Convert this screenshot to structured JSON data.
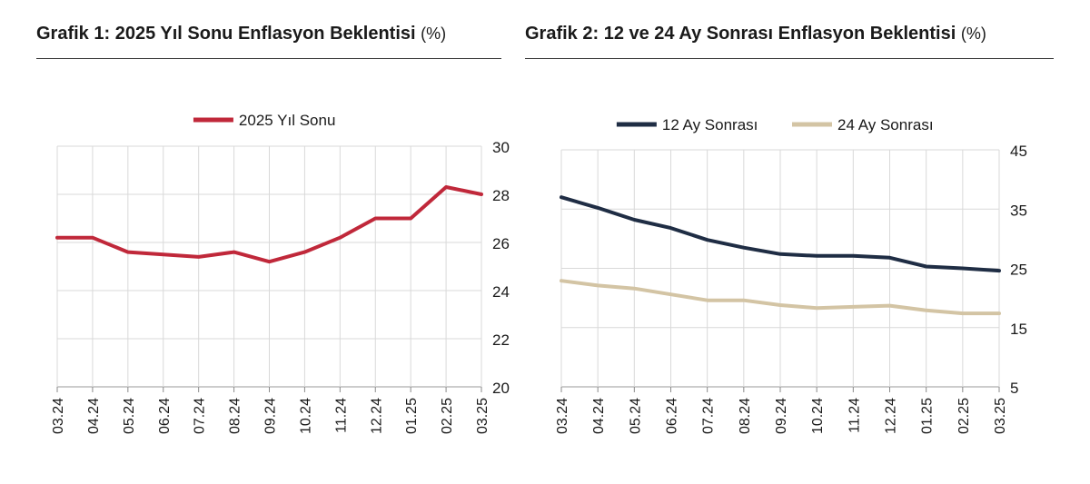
{
  "chart_data": [
    {
      "type": "line",
      "title": "Grafik 1: 2025 Yıl Sonu Enflasyon Beklentisi",
      "unit": "(%)",
      "categories": [
        "03.24",
        "04.24",
        "05.24",
        "06.24",
        "07.24",
        "08.24",
        "09.24",
        "10.24",
        "11.24",
        "12.24",
        "01.25",
        "02.25",
        "03.25"
      ],
      "series": [
        {
          "name": "2025 Yıl Sonu",
          "color": "#c0283a",
          "values": [
            26.2,
            26.2,
            25.6,
            25.5,
            25.4,
            25.6,
            25.2,
            25.6,
            26.2,
            27.0,
            27.0,
            28.3,
            28.0
          ]
        }
      ],
      "ylim": [
        20,
        30
      ],
      "yticks": [
        20,
        22,
        24,
        26,
        28,
        30
      ],
      "y_axis_position": "right",
      "grid": true,
      "legend_position": "top-center"
    },
    {
      "type": "line",
      "title": "Grafik 2: 12 ve 24 Ay Sonrası Enflasyon Beklentisi",
      "unit": "(%)",
      "categories": [
        "03.24",
        "04.24",
        "05.24",
        "06.24",
        "07.24",
        "08.24",
        "09.24",
        "10.24",
        "11.24",
        "12.24",
        "01.25",
        "02.25",
        "03.25"
      ],
      "series": [
        {
          "name": "12 Ay Sonrası",
          "color": "#1f2d44",
          "values": [
            37.0,
            35.2,
            33.2,
            31.8,
            29.8,
            28.5,
            27.4,
            27.1,
            27.1,
            26.8,
            25.3,
            25.0,
            24.6
          ]
        },
        {
          "name": "24 Ay Sonrası",
          "color": "#d3c4a4",
          "values": [
            22.9,
            22.1,
            21.6,
            20.6,
            19.6,
            19.6,
            18.8,
            18.3,
            18.5,
            18.7,
            17.9,
            17.4,
            17.4
          ]
        }
      ],
      "ylim": [
        5,
        45
      ],
      "yticks": [
        5,
        15,
        25,
        35,
        45
      ],
      "y_axis_position": "right",
      "grid": true,
      "legend_position": "top-center"
    }
  ]
}
